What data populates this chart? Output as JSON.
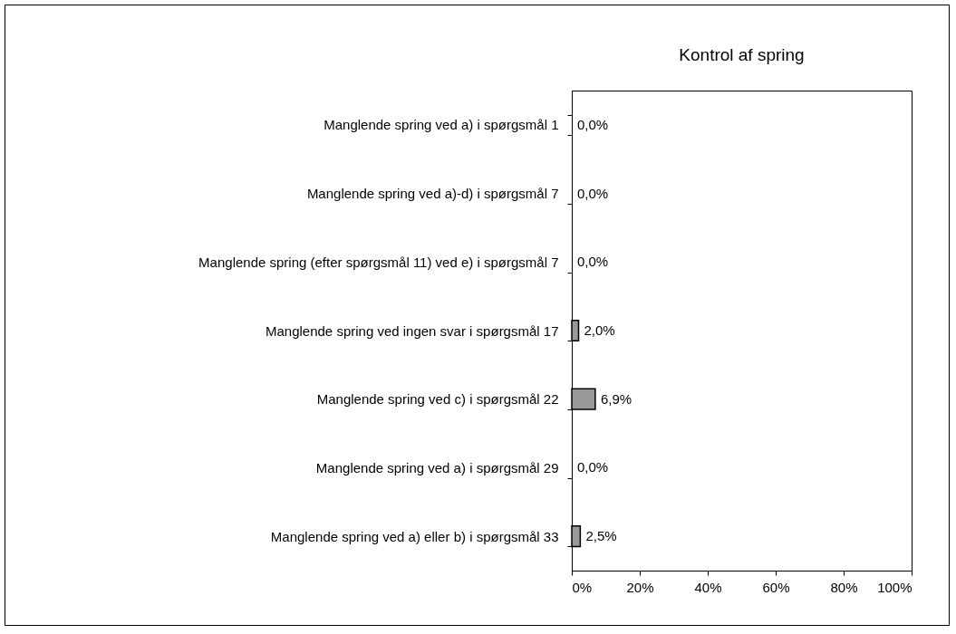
{
  "chart_data": {
    "type": "bar",
    "orientation": "horizontal",
    "title": "Kontrol af spring",
    "categories": [
      "Manglende spring ved a) i spørgsmål 1",
      "Manglende spring ved a)-d) i spørgsmål 7",
      "Manglende spring (efter spørgsmål 11) ved e) i spørgsmål 7",
      "Manglende spring ved ingen svar i spørgsmål 17",
      "Manglende spring ved c) i spørgsmål 22",
      "Manglende spring ved a) i spørgsmål 29",
      "Manglende spring ved a) eller b) i spørgsmål 33"
    ],
    "values": [
      0,
      0,
      0,
      2.0,
      6.9,
      0,
      2.5
    ],
    "value_labels": [
      "0,0%",
      "0,0%",
      "0,0%",
      "2,0%",
      "6,9%",
      "0,0%",
      "2,5%"
    ],
    "color": "#999999",
    "xlim": [
      0,
      100
    ],
    "xticks": [
      {
        "value": 0,
        "label": "0%"
      },
      {
        "value": 20,
        "label": "20%"
      },
      {
        "value": 40,
        "label": "40%"
      },
      {
        "value": 60,
        "label": "60%"
      },
      {
        "value": 80,
        "label": "80%"
      },
      {
        "value": 100,
        "label": "100%"
      }
    ],
    "grid": false
  }
}
